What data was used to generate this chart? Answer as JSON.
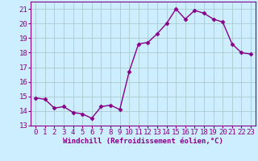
{
  "x": [
    0,
    1,
    2,
    3,
    4,
    5,
    6,
    7,
    8,
    9,
    10,
    11,
    12,
    13,
    14,
    15,
    16,
    17,
    18,
    19,
    20,
    21,
    22,
    23
  ],
  "y": [
    14.9,
    14.8,
    14.2,
    14.3,
    13.9,
    13.8,
    13.5,
    14.3,
    14.4,
    14.1,
    16.7,
    18.6,
    18.7,
    19.3,
    20.0,
    21.0,
    20.3,
    20.9,
    20.7,
    20.3,
    20.1,
    18.6,
    18.0,
    17.9
  ],
  "line_color": "#880088",
  "marker": "D",
  "markersize": 2.5,
  "linewidth": 1.0,
  "bg_color": "#cceeff",
  "grid_color": "#aacccc",
  "xlabel": "Windchill (Refroidissement éolien,°C)",
  "ylabel": "",
  "ylim": [
    13,
    21.5
  ],
  "xlim": [
    -0.5,
    23.5
  ],
  "yticks": [
    13,
    14,
    15,
    16,
    17,
    18,
    19,
    20,
    21
  ],
  "xticks": [
    0,
    1,
    2,
    3,
    4,
    5,
    6,
    7,
    8,
    9,
    10,
    11,
    12,
    13,
    14,
    15,
    16,
    17,
    18,
    19,
    20,
    21,
    22,
    23
  ],
  "xlabel_fontsize": 6.5,
  "tick_fontsize": 6.5
}
